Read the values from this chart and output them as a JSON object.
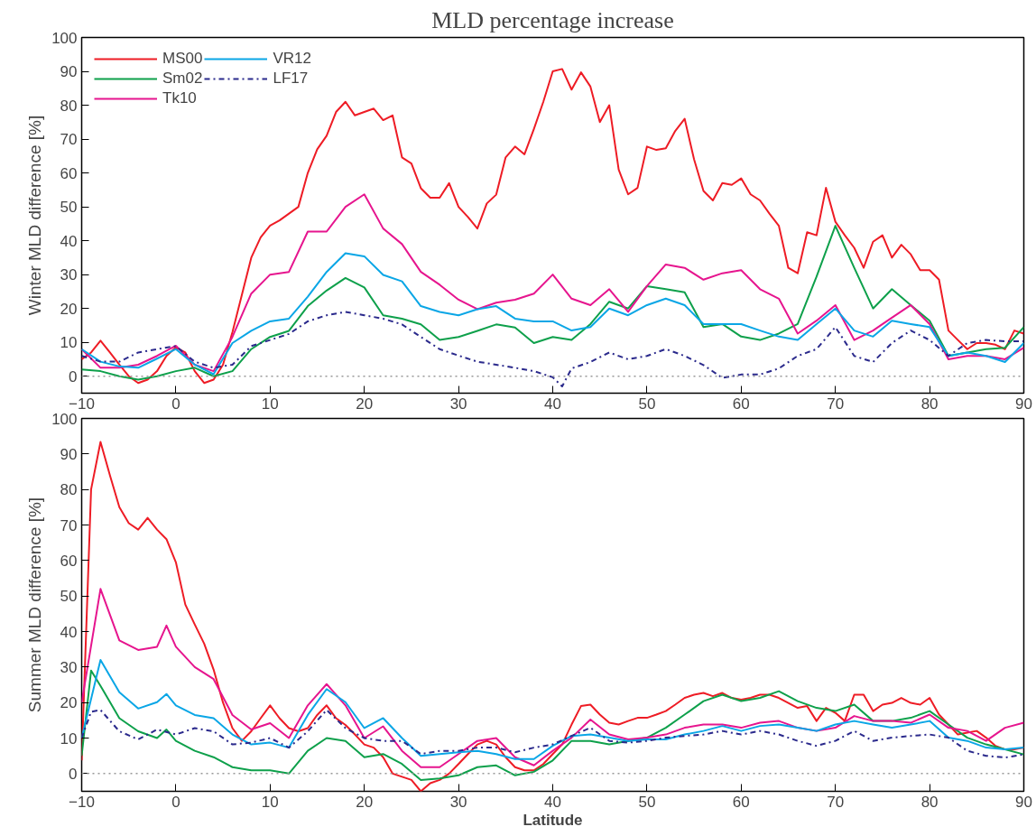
{
  "chart_data": [
    {
      "type": "line",
      "title": "MLD percentage increase",
      "ylabel": "Winter MLD difference [%]",
      "xlim": [
        -10,
        90
      ],
      "ylim": [
        -5,
        100
      ],
      "xticks": [
        -10,
        0,
        10,
        20,
        30,
        40,
        50,
        60,
        70,
        80,
        90
      ],
      "yticks": [
        0,
        10,
        20,
        30,
        40,
        50,
        60,
        70,
        80,
        90,
        100
      ],
      "grid": false,
      "legend": "top left",
      "ref_lines": [
        {
          "axis": "y",
          "value": 0,
          "color": "#999999",
          "line_style": "dotted"
        }
      ],
      "series": [
        {
          "name": "MS00",
          "color": "#ee1c25",
          "line_style": "solid",
          "x": [
            -10,
            -9,
            -8,
            -7,
            -6,
            -5,
            -4,
            -3,
            -2,
            -1,
            0,
            1,
            2,
            3,
            4,
            5,
            6,
            7,
            8,
            9,
            10,
            11,
            12,
            13,
            14,
            15,
            16,
            17,
            18,
            19,
            20,
            21,
            22,
            23,
            24,
            25,
            26,
            27,
            28,
            29,
            30,
            31,
            32,
            33,
            34,
            35,
            36,
            37,
            38,
            39,
            40,
            41,
            42,
            43,
            44,
            45,
            46,
            47,
            48,
            49,
            50,
            51,
            52,
            53,
            54,
            55,
            56,
            57,
            58,
            59,
            60,
            61,
            62,
            63,
            64,
            65,
            66,
            67,
            68,
            69,
            70,
            71,
            72,
            73,
            74,
            75,
            76,
            77,
            78,
            79,
            80,
            81,
            82,
            83,
            84,
            85,
            86,
            87,
            88,
            89,
            90
          ],
          "values": [
            5,
            7,
            10.5,
            7,
            3.4,
            0,
            -2,
            -1,
            1.5,
            6,
            8.5,
            7,
            1.5,
            -2,
            -1,
            3.4,
            13,
            24,
            35,
            41,
            44.5,
            46,
            48,
            50,
            60,
            67,
            71,
            78,
            81,
            77,
            78,
            79,
            75.6,
            77,
            64.6,
            62.8,
            55.5,
            52.7,
            52.7,
            57,
            50,
            47,
            43.6,
            51,
            53.6,
            64.6,
            67.8,
            65.5,
            73,
            81,
            90,
            90.7,
            84.6,
            89.7,
            85.5,
            75,
            80,
            61,
            53.7,
            55.6,
            67.8,
            66.8,
            67.3,
            72.4,
            76,
            64,
            54.7,
            51.9,
            57,
            56.5,
            58.4,
            53.7,
            51.9,
            48,
            44.4,
            32,
            30.4,
            42.5,
            41.6,
            55.6,
            45.6,
            41.6,
            37.9,
            32,
            39.7,
            41.6,
            35,
            38.8,
            36,
            31.3,
            31.3,
            28.5,
            13.5,
            10.7,
            8,
            9.8,
            9.8,
            9.3,
            8,
            13.5,
            12.6
          ]
        },
        {
          "name": "Sm02",
          "color": "#0ea04b",
          "line_style": "solid",
          "x": [
            -10,
            -8,
            -6,
            -4,
            -2,
            0,
            2,
            4,
            6,
            8,
            10,
            12,
            14,
            16,
            18,
            20,
            22,
            24,
            26,
            28,
            30,
            32,
            34,
            36,
            38,
            40,
            42,
            44,
            46,
            48,
            50,
            52,
            54,
            56,
            58,
            60,
            62,
            64,
            66,
            68,
            70,
            72,
            74,
            76,
            78,
            80,
            82,
            84,
            86,
            88,
            90
          ],
          "values": [
            2,
            1.5,
            0,
            -1,
            0,
            1.5,
            2.5,
            0,
            1.5,
            8,
            11.6,
            13.4,
            20.7,
            25.3,
            29,
            26.2,
            18,
            17,
            15.3,
            10.7,
            11.6,
            13.4,
            15.3,
            14.4,
            9.8,
            11.6,
            10.7,
            15.4,
            22,
            20,
            26.6,
            25.7,
            24.8,
            14.5,
            15.4,
            11.7,
            10.7,
            12.6,
            15.4,
            29.4,
            44.4,
            32,
            20,
            25.7,
            21,
            16.4,
            6,
            7,
            8,
            8.4,
            14.5
          ]
        },
        {
          "name": "Tk10",
          "color": "#e6158e",
          "line_style": "solid",
          "x": [
            -10,
            -8,
            -6,
            -4,
            -2,
            0,
            2,
            4,
            6,
            8,
            10,
            12,
            14,
            16,
            18,
            20,
            22,
            24,
            26,
            28,
            30,
            32,
            34,
            36,
            38,
            40,
            42,
            44,
            46,
            48,
            50,
            52,
            54,
            56,
            58,
            60,
            62,
            64,
            66,
            68,
            70,
            72,
            74,
            76,
            78,
            80,
            82,
            84,
            86,
            88,
            90
          ],
          "values": [
            8,
            2.5,
            2.5,
            3.4,
            6,
            9,
            3.4,
            1.5,
            11.6,
            24.4,
            30,
            30.8,
            42.7,
            42.7,
            50,
            53.7,
            43.6,
            39,
            30.8,
            27,
            22.6,
            19.8,
            21.7,
            22.6,
            24.4,
            30,
            22.9,
            21,
            25.7,
            19,
            26.6,
            33,
            32,
            28.5,
            30.4,
            31.3,
            25.7,
            22.9,
            12.6,
            16.4,
            21,
            10.7,
            13.5,
            17.3,
            21,
            15.4,
            5,
            6,
            6,
            5,
            8.4
          ]
        },
        {
          "name": "VR12",
          "color": "#0aa6e6",
          "line_style": "solid",
          "x": [
            -10,
            -8,
            -6,
            -4,
            -2,
            0,
            2,
            4,
            6,
            8,
            10,
            12,
            14,
            16,
            18,
            20,
            22,
            24,
            26,
            28,
            30,
            32,
            34,
            36,
            38,
            40,
            42,
            44,
            46,
            48,
            50,
            52,
            54,
            56,
            58,
            60,
            62,
            64,
            66,
            68,
            70,
            72,
            74,
            76,
            78,
            80,
            82,
            84,
            86,
            88,
            90
          ],
          "values": [
            8,
            4.3,
            2.9,
            2.5,
            5.2,
            8,
            3.4,
            0.6,
            9.8,
            13.4,
            16.2,
            17,
            23.5,
            30.8,
            36.3,
            35.4,
            29.9,
            28,
            20.7,
            19,
            18,
            19.8,
            20.7,
            17,
            16.2,
            16.2,
            13.5,
            14.5,
            20,
            18,
            21,
            22.9,
            21,
            15.4,
            15.4,
            15.4,
            13.5,
            11.7,
            10.7,
            15.4,
            20,
            13.5,
            11.7,
            16.4,
            15.4,
            14.5,
            6,
            7,
            6,
            4.2,
            9.8
          ]
        },
        {
          "name": "LF17",
          "color": "#2b2a8c",
          "line_style": "dashdot",
          "x": [
            -10,
            -8,
            -6,
            -4,
            -2,
            0,
            2,
            4,
            6,
            8,
            10,
            12,
            14,
            16,
            18,
            20,
            22,
            24,
            26,
            28,
            30,
            32,
            34,
            36,
            38,
            40,
            41,
            42,
            44,
            46,
            48,
            50,
            52,
            54,
            56,
            58,
            60,
            62,
            64,
            66,
            68,
            70,
            72,
            74,
            76,
            78,
            80,
            82,
            84,
            86,
            88,
            90
          ],
          "values": [
            6,
            4.3,
            4.3,
            7,
            8,
            8.9,
            4.3,
            2.5,
            3.4,
            8.9,
            10.7,
            12.5,
            16.2,
            18,
            19,
            18,
            17,
            15.3,
            11.6,
            8,
            6.1,
            4.3,
            3.4,
            2.5,
            1.5,
            -0.3,
            -3,
            2.3,
            4.2,
            7,
            5,
            6,
            8,
            6,
            3.3,
            -0.5,
            0.5,
            0.5,
            2.3,
            6,
            8,
            14.5,
            6,
            4.2,
            9.8,
            13.5,
            10.7,
            6,
            9.8,
            10.7,
            10.3,
            10.3
          ]
        }
      ]
    },
    {
      "type": "line",
      "xlabel": "Latitude",
      "ylabel": "Summer MLD difference [%]",
      "xlim": [
        -10,
        90
      ],
      "ylim": [
        -5,
        100
      ],
      "xticks": [
        -10,
        0,
        10,
        20,
        30,
        40,
        50,
        60,
        70,
        80,
        90
      ],
      "yticks": [
        0,
        10,
        20,
        30,
        40,
        50,
        60,
        70,
        80,
        90,
        100
      ],
      "grid": false,
      "legend": false,
      "ref_lines": [
        {
          "axis": "y",
          "value": 0,
          "color": "#999999",
          "line_style": "dotted"
        }
      ],
      "series": [
        {
          "color": "#ee1c25",
          "line_style": "solid",
          "x": [
            -10,
            -9,
            -8,
            -7,
            -6,
            -5,
            -4,
            -3,
            -2,
            -1,
            0,
            1,
            2,
            3,
            4,
            5,
            6,
            7,
            8,
            9,
            10,
            11,
            12,
            13,
            14,
            15,
            16,
            17,
            18,
            19,
            20,
            21,
            22,
            23,
            24,
            25,
            26,
            27,
            28,
            29,
            30,
            31,
            32,
            33,
            34,
            35,
            36,
            37,
            38,
            39,
            40,
            41,
            42,
            43,
            44,
            45,
            46,
            47,
            48,
            49,
            50,
            51,
            52,
            53,
            54,
            55,
            56,
            57,
            58,
            59,
            60,
            61,
            62,
            63,
            64,
            65,
            66,
            67,
            68,
            69,
            70,
            71,
            72,
            73,
            74,
            75,
            76,
            77,
            78,
            79,
            80,
            81,
            82,
            83,
            84,
            85,
            86,
            87,
            88,
            89,
            90
          ],
          "values": [
            3.7,
            80,
            93.4,
            84,
            75,
            70.5,
            68.7,
            72,
            68.7,
            66,
            59.5,
            47.6,
            42,
            36.6,
            29.3,
            20,
            12.8,
            9.2,
            11.9,
            15.6,
            19.2,
            15.6,
            12.8,
            11.9,
            12.8,
            16.5,
            19.2,
            15.6,
            13.7,
            11,
            8.2,
            7.3,
            4.6,
            0,
            -0.9,
            -1.8,
            -5,
            -2.7,
            -1.8,
            0,
            2.7,
            5.5,
            8.2,
            9.2,
            8.2,
            4.6,
            1.8,
            0.9,
            0.9,
            2.7,
            5.5,
            8.2,
            13.8,
            19,
            19.4,
            16.6,
            14.3,
            13.8,
            14.8,
            15.7,
            15.7,
            16.6,
            17.6,
            19.4,
            21.3,
            22.2,
            22.7,
            21.8,
            22.7,
            21.3,
            20.8,
            21.3,
            22.2,
            22.2,
            21.3,
            19.9,
            18.5,
            19,
            14.8,
            18.5,
            17.1,
            14.8,
            22.2,
            22.2,
            17.6,
            19.4,
            19.9,
            21.3,
            19.9,
            19.4,
            21.3,
            16.6,
            13.8,
            11,
            11.5,
            12,
            10.1,
            7.8,
            6.8,
            6.8,
            7.3
          ]
        },
        {
          "color": "#0ea04b",
          "line_style": "solid",
          "x": [
            -10,
            -9,
            -8,
            -6,
            -4,
            -2,
            -1,
            0,
            2,
            4,
            6,
            8,
            10,
            12,
            14,
            16,
            18,
            20,
            22,
            24,
            26,
            28,
            30,
            32,
            34,
            36,
            38,
            40,
            42,
            44,
            46,
            48,
            50,
            52,
            54,
            56,
            58,
            60,
            62,
            64,
            66,
            68,
            70,
            72,
            74,
            76,
            78,
            80,
            82,
            84,
            86,
            88,
            90
          ],
          "values": [
            5,
            29,
            24.7,
            15.6,
            11.9,
            10,
            12.4,
            9.2,
            6.4,
            4.6,
            1.8,
            0.9,
            0.9,
            0,
            6.4,
            10,
            9.2,
            4.6,
            5.5,
            2.7,
            -1.8,
            -1.4,
            -0.5,
            1.8,
            2.3,
            -0.5,
            0.5,
            3.7,
            9.2,
            9.2,
            8.2,
            9.2,
            10.1,
            12.9,
            16.6,
            20.4,
            22.2,
            20.4,
            21.3,
            23.2,
            20.4,
            18.5,
            17.6,
            19.4,
            14.8,
            14.8,
            15.7,
            17.6,
            13.8,
            10.1,
            8.2,
            6.8,
            5.4
          ]
        },
        {
          "color": "#e6158e",
          "line_style": "solid",
          "x": [
            -10,
            -8,
            -6,
            -4,
            -2,
            -1,
            0,
            2,
            4,
            6,
            8,
            10,
            12,
            14,
            16,
            18,
            20,
            22,
            24,
            26,
            28,
            30,
            32,
            34,
            36,
            38,
            40,
            42,
            44,
            46,
            48,
            50,
            52,
            54,
            56,
            58,
            60,
            62,
            64,
            66,
            68,
            70,
            72,
            74,
            76,
            78,
            80,
            82,
            84,
            86,
            88,
            90
          ],
          "values": [
            20,
            52,
            37.5,
            34.8,
            35.7,
            41.7,
            35.7,
            30,
            26.6,
            16.5,
            12.4,
            14.2,
            10,
            19.2,
            25.2,
            19.2,
            10,
            13.3,
            6.4,
            1.8,
            1.8,
            5.5,
            9.2,
            10,
            4.6,
            2.3,
            6.4,
            10.1,
            15.2,
            11,
            9.6,
            10.1,
            11,
            12.9,
            13.8,
            13.8,
            12.9,
            14.3,
            14.8,
            12.9,
            12,
            12.9,
            16.2,
            14.8,
            14.8,
            14.3,
            16.6,
            12.9,
            12,
            9.2,
            12.9,
            14.3
          ]
        },
        {
          "color": "#0aa6e6",
          "line_style": "solid",
          "x": [
            -10,
            -8,
            -6,
            -4,
            -2,
            -1,
            0,
            2,
            4,
            6,
            8,
            10,
            12,
            14,
            16,
            18,
            20,
            22,
            24,
            26,
            28,
            30,
            32,
            34,
            36,
            38,
            40,
            42,
            44,
            46,
            48,
            50,
            52,
            54,
            56,
            58,
            60,
            62,
            64,
            66,
            68,
            70,
            72,
            74,
            76,
            78,
            80,
            82,
            84,
            86,
            88,
            90
          ],
          "values": [
            10,
            32,
            22.9,
            18.3,
            20.1,
            22.4,
            19.2,
            16.5,
            15.6,
            11,
            8.2,
            8.7,
            7.3,
            16.5,
            23.8,
            20.1,
            12.8,
            15.6,
            10,
            5,
            5.5,
            6,
            6.4,
            5.5,
            4.1,
            4.1,
            7.8,
            10.6,
            11,
            10.1,
            9.2,
            9.6,
            9.6,
            11,
            12,
            13.4,
            12,
            13.4,
            13.8,
            12.9,
            12,
            13.8,
            14.8,
            13.8,
            12.9,
            13.8,
            14.8,
            10.1,
            9.2,
            7.3,
            6.8,
            7.3
          ]
        },
        {
          "color": "#2b2a8c",
          "line_style": "dashdot",
          "x": [
            -10,
            -9,
            -8,
            -6,
            -4,
            -2,
            0,
            2,
            4,
            6,
            8,
            10,
            12,
            14,
            16,
            18,
            20,
            22,
            24,
            26,
            28,
            30,
            32,
            34,
            36,
            38,
            40,
            42,
            44,
            46,
            48,
            50,
            52,
            54,
            56,
            58,
            60,
            62,
            64,
            66,
            68,
            70,
            72,
            74,
            76,
            78,
            80,
            82,
            84,
            86,
            88,
            90
          ],
          "values": [
            10,
            17.4,
            17.9,
            11.9,
            9.6,
            12.4,
            11,
            12.8,
            11.9,
            8.2,
            8.7,
            10,
            7.3,
            11.9,
            17.9,
            12.8,
            10,
            9.2,
            9.2,
            5.5,
            6.4,
            6.4,
            7.3,
            7.3,
            6,
            7.3,
            8.2,
            10.6,
            12.9,
            9.2,
            8.7,
            9.2,
            10.1,
            10.6,
            11,
            12,
            11,
            12,
            11,
            9.2,
            7.8,
            9.2,
            12,
            9.2,
            10.1,
            10.6,
            11,
            10.1,
            6.4,
            5,
            4.5,
            5.4
          ]
        }
      ]
    }
  ]
}
